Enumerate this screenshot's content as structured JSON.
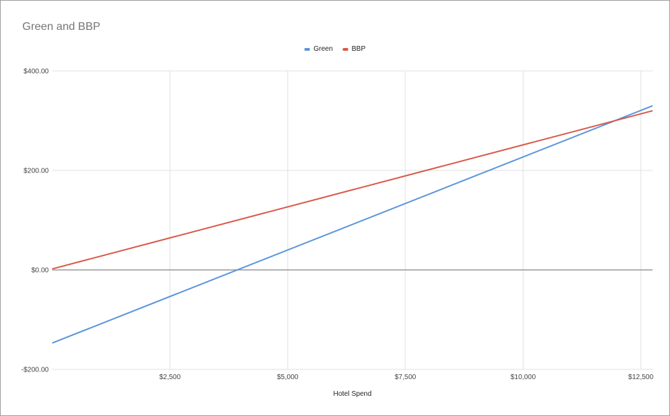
{
  "chart_data": {
    "type": "line",
    "title": "Green and BBP",
    "xlabel": "Hotel Spend",
    "ylabel": "",
    "xlim": [
      0,
      12750
    ],
    "ylim": [
      -200,
      400
    ],
    "x_ticks": [
      2500,
      5000,
      7500,
      10000,
      12500
    ],
    "x_tick_labels": [
      "$2,500",
      "$5,000",
      "$7,500",
      "$10,000",
      "$12,500"
    ],
    "y_ticks": [
      -200,
      0,
      200,
      400
    ],
    "y_tick_labels": [
      "-$200.00",
      "$0.00",
      "$200.00",
      "$400.00"
    ],
    "grid": true,
    "legend_position": "top-center",
    "series": [
      {
        "name": "Green",
        "color": "#5b95db",
        "x": [
          0,
          12750
        ],
        "values": [
          -147,
          330
        ]
      },
      {
        "name": "BBP",
        "color": "#d9584a",
        "x": [
          0,
          12750
        ],
        "values": [
          2,
          320
        ]
      }
    ]
  }
}
